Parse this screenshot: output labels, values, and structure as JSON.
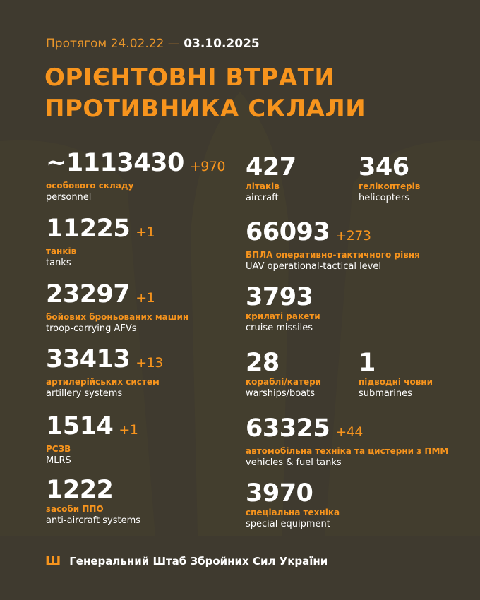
{
  "header": {
    "period_prefix": "Протягом 24.02.22 —",
    "period_date": "03.10.2025",
    "title_line1": "ОРІЄНТОВНІ ВТРАТИ",
    "title_line2": "ПРОТИВНИКА СКЛАЛИ"
  },
  "colors": {
    "background": "#3f3a2f",
    "accent": "#f7941d",
    "text": "#ffffff"
  },
  "stats": [
    {
      "value": "~1113430",
      "delta": "+970",
      "ua": "особового складу",
      "en": "personnel"
    },
    {
      "value": "11225",
      "delta": "+1",
      "ua": "танків",
      "en": "tanks"
    },
    {
      "value": "23297",
      "delta": "+1",
      "ua": "бойових броньованих машин",
      "en": "troop-carrying AFVs"
    },
    {
      "value": "33413",
      "delta": "+13",
      "ua": "артилерійських систем",
      "en": "artillery systems"
    },
    {
      "value": "1514",
      "delta": "+1",
      "ua": "РСЗВ",
      "en": "MLRS"
    },
    {
      "value": "1222",
      "delta": "",
      "ua": "засоби ППО",
      "en": "anti-aircraft systems"
    },
    {
      "value": "427",
      "delta": "",
      "ua": "літаків",
      "en": "aircraft"
    },
    {
      "value": "346",
      "delta": "",
      "ua": "гелікоптерів",
      "en": "helicopters"
    },
    {
      "value": "66093",
      "delta": "+273",
      "ua": "БПЛА оперативно-тактичного рівня",
      "en": "UAV operational-tactical level"
    },
    {
      "value": "3793",
      "delta": "",
      "ua": "крилаті ракети",
      "en": "cruise missiles"
    },
    {
      "value": "28",
      "delta": "",
      "ua": "кораблі/катери",
      "en": "warships/boats"
    },
    {
      "value": "1",
      "delta": "",
      "ua": "підводні човни",
      "en": "submarines"
    },
    {
      "value": "63325",
      "delta": "+44",
      "ua": "автомобільна техніка та цистерни з ПММ",
      "en": "vehicles & fuel tanks"
    },
    {
      "value": "3970",
      "delta": "",
      "ua": "спеціальна техніка",
      "en": "special equipment"
    }
  ],
  "footer": {
    "icon": "trident-icon",
    "text": "Генеральний Штаб Збройних Сил України"
  }
}
